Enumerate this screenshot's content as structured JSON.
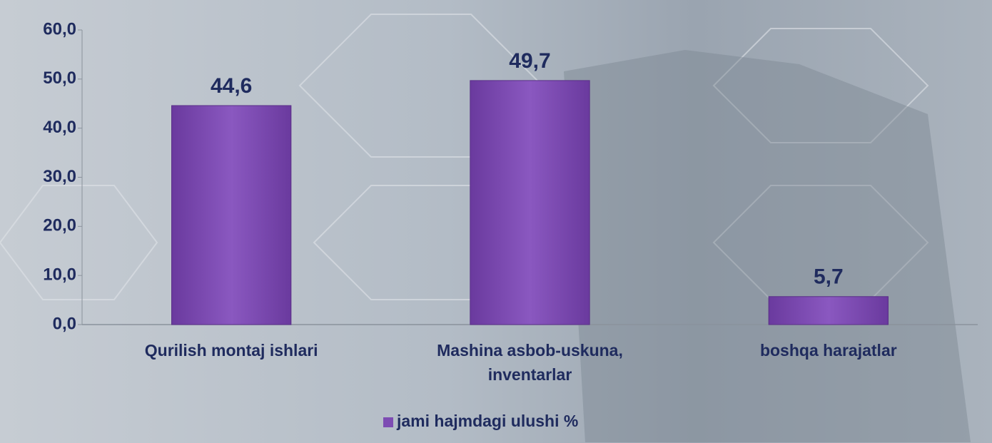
{
  "chart_data": {
    "type": "bar",
    "categories": [
      "Qurilish montaj ishlari",
      "Mashina asbob-uskuna, inventarlar",
      "boshqa harajatlar"
    ],
    "series": [
      {
        "name": "jami hajmdagi ulushi %",
        "color": "#7d4cb3",
        "values": [
          44.6,
          49.7,
          5.7
        ],
        "value_labels": [
          "44,6",
          "49,7",
          "5,7"
        ]
      }
    ],
    "ylim": [
      0,
      60
    ],
    "yticks": [
      {
        "value": 0,
        "label": "0,0"
      },
      {
        "value": 10,
        "label": "10,0"
      },
      {
        "value": 20,
        "label": "20,0"
      },
      {
        "value": 30,
        "label": "30,0"
      },
      {
        "value": 40,
        "label": "40,0"
      },
      {
        "value": 50,
        "label": "50,0"
      },
      {
        "value": 60,
        "label": "60,0"
      }
    ],
    "grid": false,
    "legend": "bottom"
  }
}
